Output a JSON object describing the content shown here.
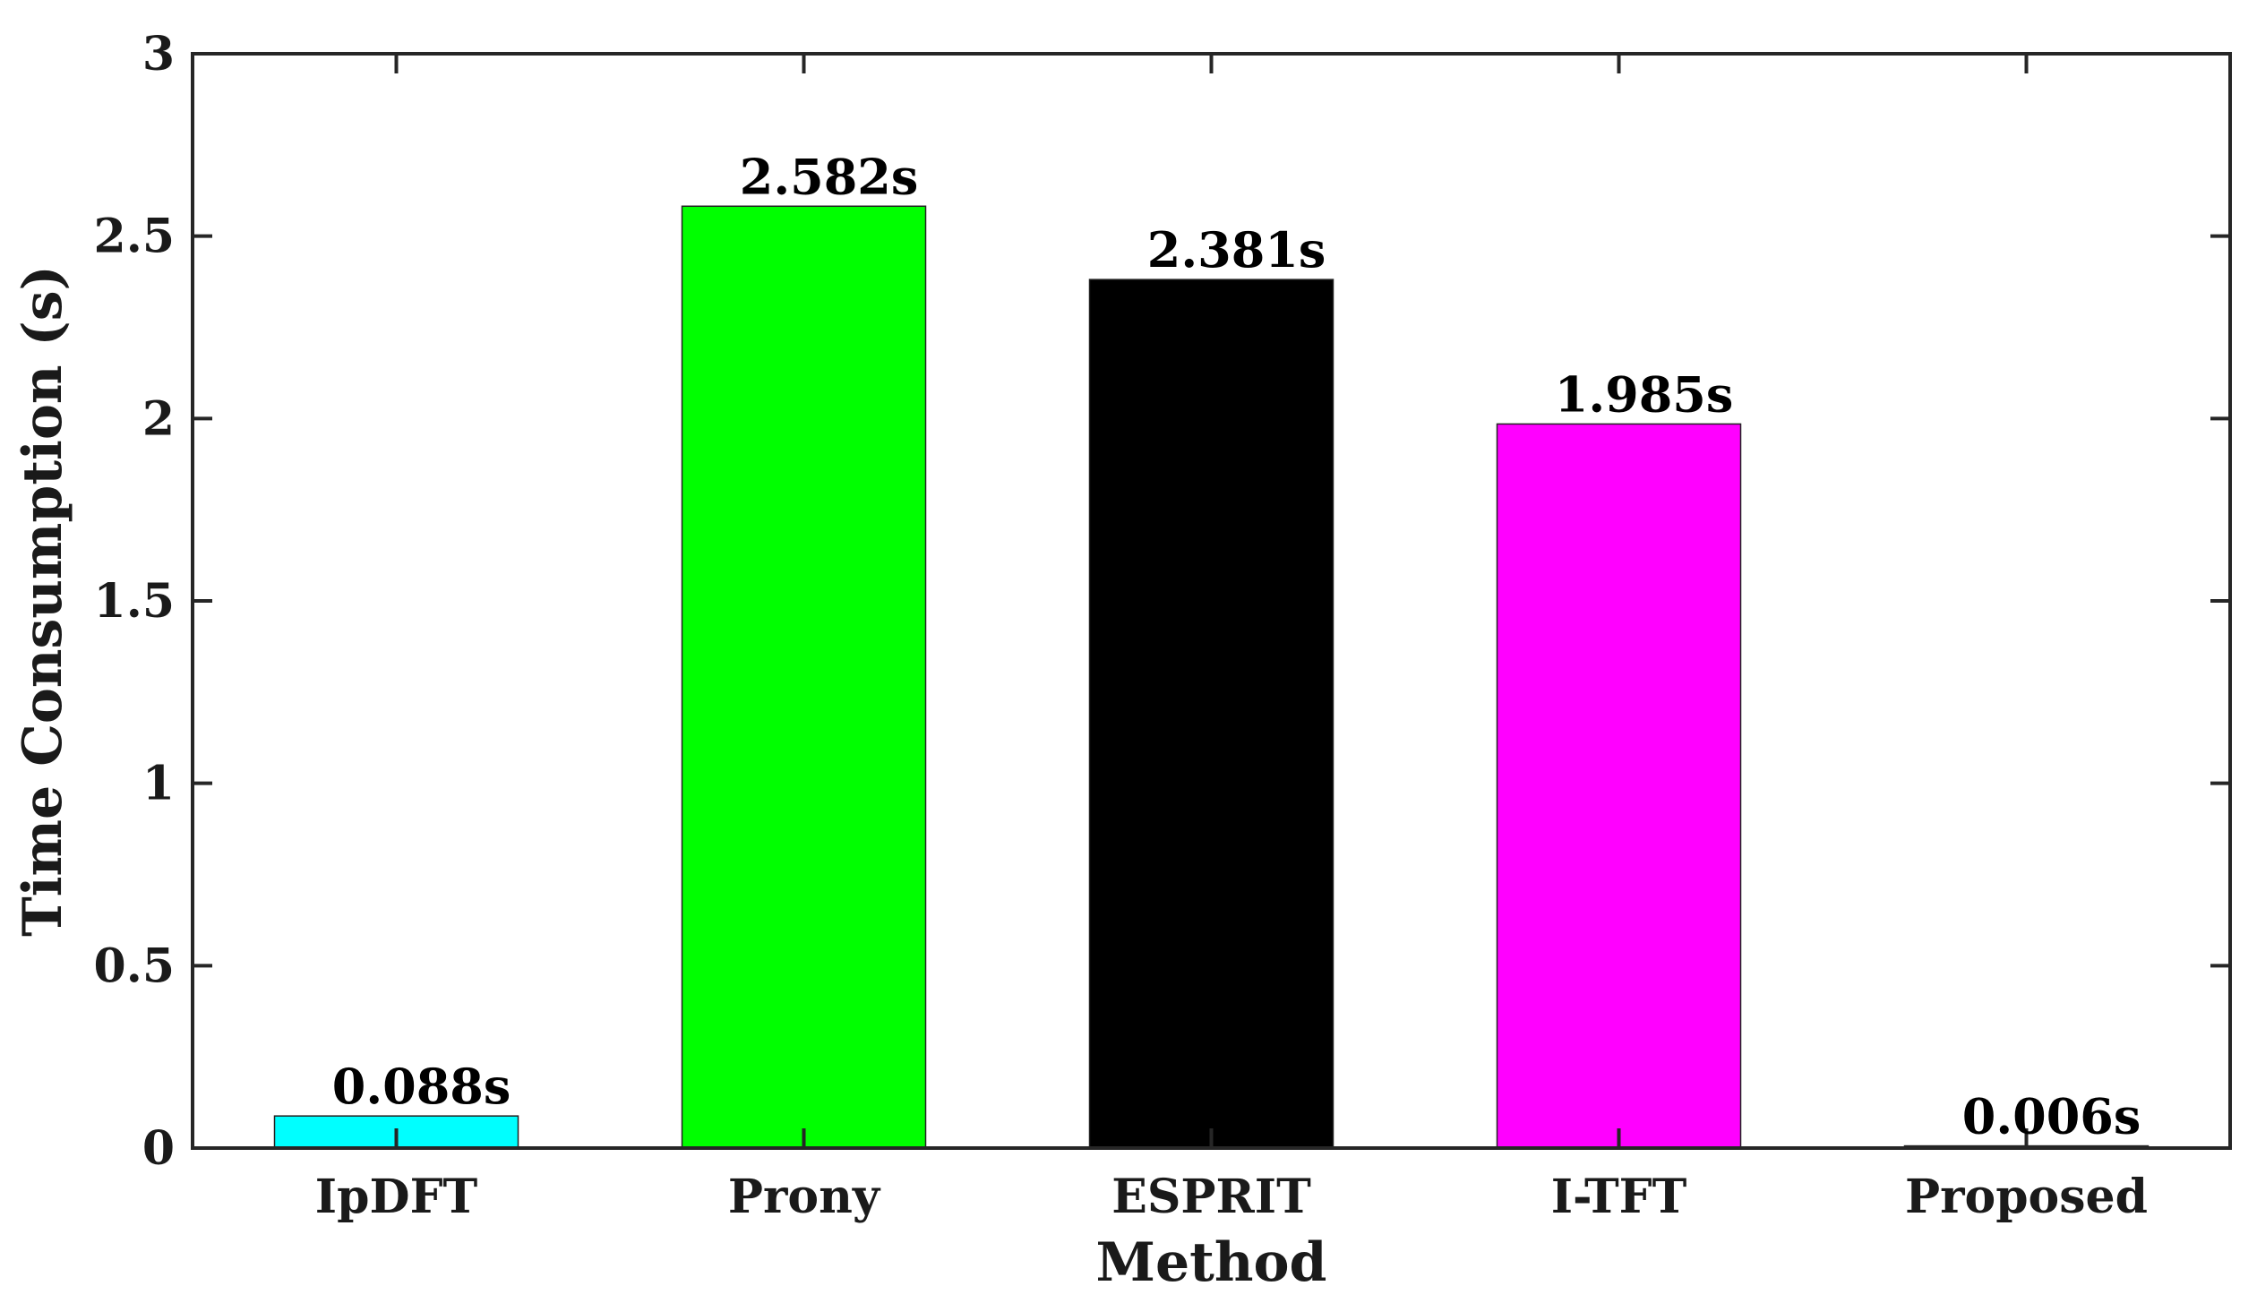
{
  "chart_data": {
    "type": "bar",
    "categories": [
      "IpDFT",
      "Prony",
      "ESPRIT",
      "I-TFT",
      "Proposed"
    ],
    "values": [
      0.088,
      2.582,
      2.381,
      1.985,
      0.006
    ],
    "data_labels": [
      "0.088s",
      "2.582s",
      "2.381s",
      "1.985s",
      "0.006s"
    ],
    "colors": [
      "#00ffff",
      "#00ff00",
      "#000000",
      "#ff00ff",
      "#0000ff"
    ],
    "title": "",
    "xlabel": "Method",
    "ylabel": "Time Consumption (s)",
    "ylim": [
      0,
      3
    ],
    "yticks": [
      0,
      0.5,
      1,
      1.5,
      2,
      2.5,
      3
    ],
    "ytick_labels": [
      "0",
      "0.5",
      "1",
      "1.5",
      "2",
      "2.5",
      "3"
    ],
    "grid": false,
    "box": true
  }
}
